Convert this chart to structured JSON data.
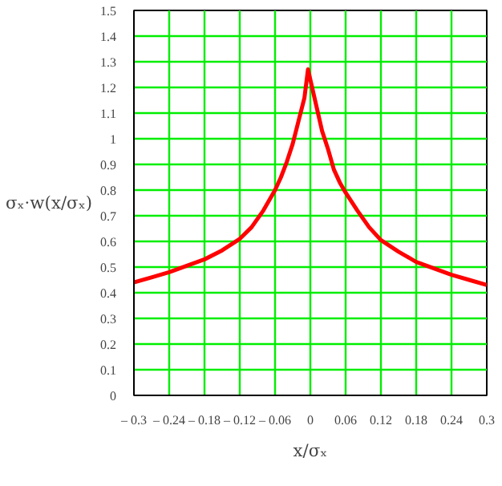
{
  "chart_data": {
    "type": "line",
    "xlabel": "x/σₓ",
    "ylabel": "σₓ·w(x/σₓ)",
    "x": [
      -0.3,
      -0.27,
      -0.24,
      -0.21,
      -0.18,
      -0.15,
      -0.12,
      -0.1,
      -0.08,
      -0.06,
      -0.05,
      -0.04,
      -0.03,
      -0.02,
      -0.01,
      -0.004,
      0,
      0.01,
      0.02,
      0.03,
      0.04,
      0.05,
      0.06,
      0.08,
      0.1,
      0.12,
      0.15,
      0.18,
      0.21,
      0.24,
      0.27,
      0.3
    ],
    "series": [
      {
        "color": "#ff0000",
        "values": [
          0.44,
          0.46,
          0.48,
          0.505,
          0.53,
          0.565,
          0.61,
          0.655,
          0.72,
          0.8,
          0.85,
          0.91,
          0.98,
          1.07,
          1.16,
          1.27,
          1.23,
          1.13,
          1.03,
          0.96,
          0.88,
          0.83,
          0.79,
          0.72,
          0.655,
          0.605,
          0.56,
          0.52,
          0.495,
          0.47,
          0.45,
          0.43
        ]
      }
    ],
    "xlim": [
      -0.3,
      0.3
    ],
    "ylim": [
      0,
      1.5
    ],
    "xticks": [
      {
        "value": -0.3,
        "label": "– 0.3"
      },
      {
        "value": -0.24,
        "label": "– 0.24"
      },
      {
        "value": -0.18,
        "label": "– 0.18"
      },
      {
        "value": -0.12,
        "label": "– 0.12"
      },
      {
        "value": -0.06,
        "label": "– 0.06"
      },
      0,
      0.06,
      0.12,
      0.18,
      0.24,
      0.3
    ],
    "yticks": [
      0,
      0.1,
      0.2,
      0.3,
      0.4,
      0.5,
      0.6,
      0.7,
      0.8,
      0.9,
      1,
      1.1,
      1.2,
      1.3,
      1.4,
      1.5
    ],
    "grid": true,
    "line_style": "solid"
  }
}
